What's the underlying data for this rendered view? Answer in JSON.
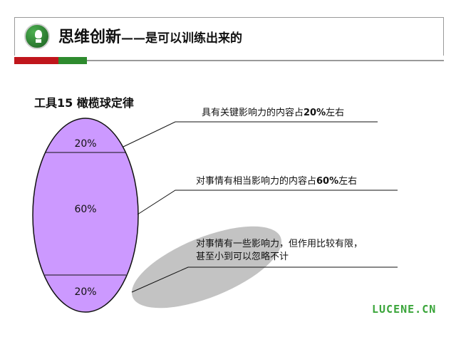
{
  "header": {
    "title_main": "思维创新",
    "title_sub": "——是可以训练出来的",
    "colors": {
      "red": "#c0161c",
      "green": "#2e8b2e",
      "logo": "#2e7d32"
    },
    "logo_icon": "lightbulb-icon"
  },
  "tool_title": "工具15  橄榄球定律",
  "segments": [
    {
      "label": "20%",
      "value": 20
    },
    {
      "label": "60%",
      "value": 60
    },
    {
      "label": "20%",
      "value": 20
    }
  ],
  "annotations": [
    {
      "text_before": "具有关键影响力的内容占",
      "bold": "20%",
      "text_after": "左右"
    },
    {
      "text_before": "对事情有相当影响力的内容占",
      "bold": "60%",
      "text_after": "左右"
    },
    {
      "line1": "对事情有一些影响力，但作用比较有限，",
      "line2": "甚至小到可以忽略不计"
    }
  ],
  "diagram_colors": {
    "ellipse_fill": "#cc99ff",
    "shadow": "#bdbdbd"
  },
  "brand": "LUCENE.CN"
}
